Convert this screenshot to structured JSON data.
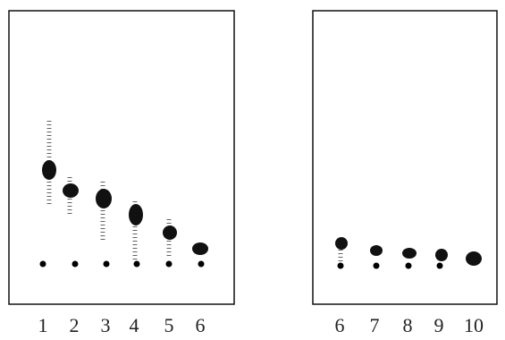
{
  "plates": [
    {
      "lanes": [
        "1",
        "2",
        "3",
        "4",
        "5",
        "6"
      ]
    },
    {
      "lanes": [
        "6",
        "7",
        "8",
        "9",
        "10"
      ]
    }
  ]
}
